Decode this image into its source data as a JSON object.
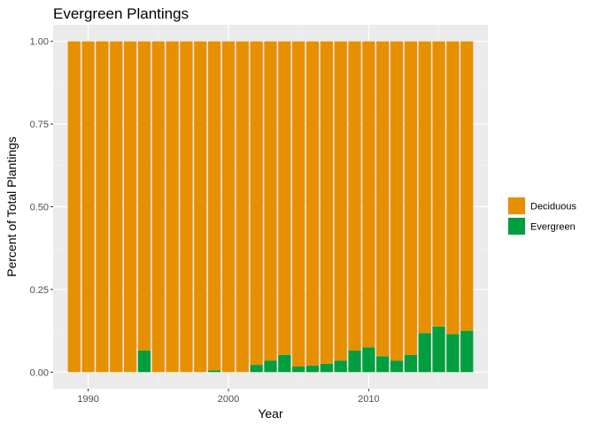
{
  "chart_data": {
    "type": "bar",
    "stacked": true,
    "title": "Evergreen Plantings",
    "xlabel": "Year",
    "ylabel": "Percent of Total Plantings",
    "xlim": [
      1987.5,
      2018.5
    ],
    "ylim": [
      -0.05,
      1.05
    ],
    "x_ticks": [
      1990,
      2000,
      2010
    ],
    "y_ticks": [
      0,
      0.25,
      0.5,
      0.75,
      1
    ],
    "y_tick_labels": [
      "0.00",
      "0.25",
      "0.50",
      "0.75",
      "1.00"
    ],
    "grid": true,
    "legend_position": "right",
    "x": [
      1989,
      1990,
      1991,
      1992,
      1993,
      1994,
      1995,
      1996,
      1997,
      1998,
      1999,
      2000,
      2001,
      2002,
      2003,
      2004,
      2005,
      2006,
      2007,
      2008,
      2009,
      2010,
      2011,
      2012,
      2013,
      2014,
      2015,
      2016,
      2017
    ],
    "series": [
      {
        "name": "Deciduous",
        "color": "#E69000",
        "values": [
          1,
          1,
          1,
          1,
          1,
          0.935,
          1,
          1,
          1,
          1,
          0.995,
          1,
          1,
          0.978,
          0.965,
          0.948,
          0.983,
          0.98,
          0.975,
          0.965,
          0.935,
          0.925,
          0.952,
          0.965,
          0.948,
          0.882,
          0.862,
          0.885,
          0.875
        ]
      },
      {
        "name": "Evergreen",
        "color": "#009E3E",
        "values": [
          0,
          0,
          0,
          0,
          0,
          0.065,
          0,
          0,
          0,
          0,
          0.005,
          0,
          0,
          0.022,
          0.035,
          0.052,
          0.017,
          0.02,
          0.025,
          0.035,
          0.065,
          0.075,
          0.048,
          0.035,
          0.052,
          0.118,
          0.138,
          0.115,
          0.125
        ]
      }
    ]
  }
}
